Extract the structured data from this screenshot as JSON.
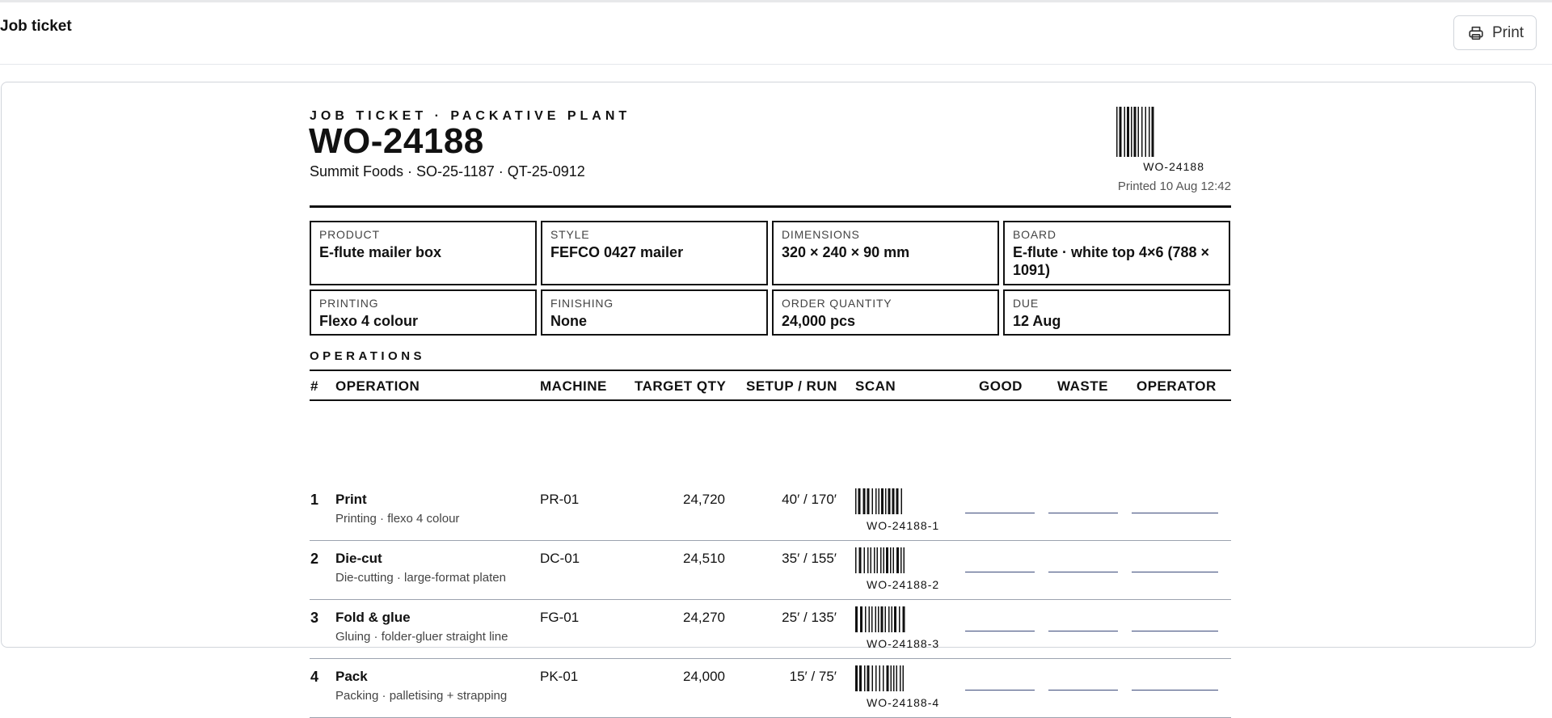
{
  "header": {
    "title": "Job ticket",
    "print_label": "Print"
  },
  "ticket": {
    "eyebrow": "JOB TICKET · PACKATIVE PLANT",
    "wo_number": "WO-24188",
    "subline": "Summit Foods · SO-25-1187 · QT-25-0912",
    "barcode_code": "WO-24188",
    "printed": "Printed 10 Aug 12:42"
  },
  "specs": [
    {
      "label": "PRODUCT",
      "value": "E-flute mailer box"
    },
    {
      "label": "STYLE",
      "value": "FEFCO 0427 mailer"
    },
    {
      "label": "DIMENSIONS",
      "value": "320 × 240 × 90 mm"
    },
    {
      "label": "BOARD",
      "value": "E-flute · white top 4×6 (788 × 1091)"
    },
    {
      "label": "PRINTING",
      "value": "Flexo 4 colour"
    },
    {
      "label": "FINISHING",
      "value": "None"
    },
    {
      "label": "ORDER QUANTITY",
      "value": "24,000 pcs"
    },
    {
      "label": "DUE",
      "value": "12 Aug"
    }
  ],
  "operations": {
    "title": "OPERATIONS",
    "columns": {
      "num": "#",
      "operation": "OPERATION",
      "machine": "MACHINE",
      "target_qty": "TARGET QTY",
      "setup_run": "SETUP / RUN",
      "scan": "SCAN",
      "good": "GOOD",
      "waste": "WASTE",
      "operator": "OPERATOR"
    },
    "rows": [
      {
        "num": "1",
        "name": "Print",
        "desc": "Printing · flexo 4 colour",
        "machine": "PR-01",
        "target_qty": "24,720",
        "setup_run": "40′ / 170′",
        "code": "WO-24188-1"
      },
      {
        "num": "2",
        "name": "Die-cut",
        "desc": "Die-cutting · large-format platen",
        "machine": "DC-01",
        "target_qty": "24,510",
        "setup_run": "35′ / 155′",
        "code": "WO-24188-2"
      },
      {
        "num": "3",
        "name": "Fold & glue",
        "desc": "Gluing · folder-gluer straight line",
        "machine": "FG-01",
        "target_qty": "24,270",
        "setup_run": "25′ / 135′",
        "code": "WO-24188-3"
      },
      {
        "num": "4",
        "name": "Pack",
        "desc": "Packing · palletising + strapping",
        "machine": "PK-01",
        "target_qty": "24,000",
        "setup_run": "15′ / 75′",
        "code": "WO-24188-4"
      }
    ]
  }
}
